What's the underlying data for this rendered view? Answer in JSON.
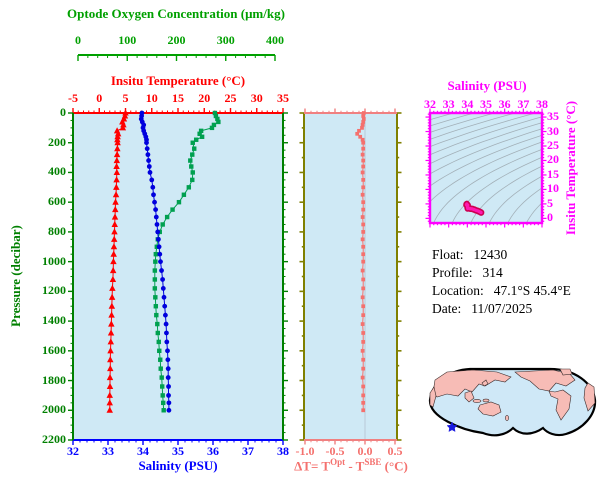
{
  "figure_info": {
    "float_label": "Float:",
    "float_value": "12430",
    "profile_label": "Profile:",
    "profile_value": "314",
    "location_label": "Location:",
    "location_value": "47.1°S  45.4°E",
    "date_label": "Date:",
    "date_value": "11/07/2025"
  },
  "colors": {
    "panel_background": "#cfe9f5",
    "oxygen_green": "#00a000",
    "pressure_green": "#008000",
    "temperature_red": "#ff0000",
    "salinity_blue": "#0000ff",
    "deltat_salmon": "#f08080",
    "deltat_frame_olive": "#808000",
    "ts_magenta": "#ff00ff",
    "ts_curve_pink": "#ff18b0",
    "map_land": "#f7bcb6",
    "map_ocean": "#cfe8f7",
    "map_marker_blue": "#1b1be0"
  },
  "chart_data": [
    {
      "id": "main-profile",
      "type": "line",
      "orientation": "vertical-profile",
      "y_axis": {
        "label": "Pressure (decibar)",
        "range": [
          0,
          2200
        ],
        "ticks": [
          0,
          200,
          400,
          600,
          800,
          1000,
          1200,
          1400,
          1600,
          1800,
          2000,
          2200
        ],
        "color": "#008000"
      },
      "x_axes": [
        {
          "id": "oxygen",
          "label": "Optode Oxygen Concentration (μm/kg)",
          "range": [
            0,
            400
          ],
          "ticks": [
            0,
            100,
            200,
            300,
            400
          ],
          "color": "#00a000"
        },
        {
          "id": "temperature",
          "label": "Insitu Temperature (°C)",
          "range": [
            -5,
            35
          ],
          "ticks": [
            -5,
            0,
            5,
            10,
            15,
            20,
            25,
            30,
            35
          ],
          "color": "#ff0000"
        },
        {
          "id": "salinity",
          "label": "Salinity (PSU)",
          "range": [
            32,
            38
          ],
          "ticks": [
            32,
            33,
            34,
            35,
            36,
            37,
            38
          ],
          "color": "#0000ff"
        }
      ],
      "pressure": [
        0,
        20,
        40,
        60,
        80,
        100,
        120,
        140,
        160,
        180,
        200,
        240,
        280,
        320,
        360,
        400,
        450,
        500,
        550,
        600,
        650,
        700,
        750,
        800,
        850,
        900,
        950,
        1000,
        1060,
        1120,
        1180,
        1240,
        1300,
        1360,
        1420,
        1480,
        1540,
        1600,
        1660,
        1720,
        1780,
        1840,
        1900,
        1950,
        2000
      ],
      "series": [
        {
          "name": "Insitu Temperature",
          "axis": "temperature",
          "color": "#ff0000",
          "marker": "triangle",
          "values": [
            5.0,
            4.9,
            4.7,
            4.4,
            4.6,
            4.5,
            3.4,
            3.6,
            3.5,
            3.45,
            3.5,
            3.45,
            3.4,
            3.35,
            3.3,
            3.35,
            3.3,
            3.25,
            3.2,
            3.1,
            3.05,
            3.0,
            2.95,
            2.9,
            2.85,
            2.8,
            2.75,
            2.7,
            2.65,
            2.6,
            2.5,
            2.45,
            2.4,
            2.35,
            2.3,
            2.25,
            2.2,
            2.15,
            2.1,
            2.1,
            2.05,
            2.05,
            2.0,
            2.0,
            2.0
          ]
        },
        {
          "name": "Salinity",
          "axis": "salinity",
          "color": "#0000dd",
          "marker": "circle",
          "values": [
            33.97,
            33.96,
            33.95,
            33.98,
            34.02,
            34.0,
            34.02,
            34.05,
            34.08,
            34.1,
            34.1,
            34.12,
            34.14,
            34.16,
            34.18,
            34.2,
            34.25,
            34.28,
            34.3,
            34.33,
            34.36,
            34.38,
            34.4,
            34.42,
            34.44,
            34.46,
            34.48,
            34.5,
            34.53,
            34.56,
            34.58,
            34.6,
            34.62,
            34.64,
            34.66,
            34.67,
            34.68,
            34.7,
            34.71,
            34.72,
            34.72,
            34.73,
            34.73,
            34.74,
            34.74
          ]
        },
        {
          "name": "Optode Oxygen Concentration",
          "axis": "oxygen",
          "color": "#00a050",
          "marker": "square",
          "values": [
            278,
            280,
            283,
            285,
            276,
            272,
            250,
            247,
            252,
            240,
            233,
            236,
            232,
            228,
            230,
            233,
            232,
            225,
            215,
            205,
            192,
            181,
            172,
            166,
            162,
            160,
            158,
            157,
            156,
            156,
            156,
            157,
            158,
            159,
            161,
            162,
            164,
            165,
            167,
            168,
            170,
            171,
            172,
            173,
            174
          ]
        }
      ]
    },
    {
      "id": "delta-t-profile",
      "type": "line",
      "orientation": "vertical-profile",
      "x_axis": {
        "label": "ΔT= T^Opt - T^SBE (°C)",
        "label_parts": {
          "p1": "ΔT= T",
          "s1": "Opt",
          "p2": " - T",
          "s2": "SBE",
          "p3": " (°C)"
        },
        "range": [
          -1.02,
          0.53
        ],
        "ticks": [
          "-1.0",
          "-0.5",
          "0.0",
          "0.5"
        ],
        "color": "#f08080",
        "frame_color": "#808000"
      },
      "y_axis": {
        "label": "",
        "range": [
          0,
          2200
        ],
        "color": "#808000"
      },
      "gridline_x": 0.0,
      "pressure": [
        0,
        20,
        40,
        60,
        80,
        100,
        120,
        140,
        160,
        180,
        200,
        240,
        280,
        320,
        360,
        400,
        450,
        500,
        550,
        600,
        650,
        700,
        750,
        800,
        850,
        900,
        950,
        1000,
        1060,
        1120,
        1180,
        1240,
        1300,
        1360,
        1420,
        1480,
        1540,
        1600,
        1660,
        1720,
        1780,
        1840,
        1900,
        1950,
        2000
      ],
      "series": [
        {
          "name": "ΔT",
          "color": "#f4716e",
          "marker": "square",
          "values": [
            -0.02,
            -0.03,
            -0.02,
            -0.03,
            -0.04,
            -0.05,
            -0.1,
            -0.13,
            -0.08,
            -0.04,
            -0.03,
            -0.03,
            -0.04,
            -0.03,
            -0.03,
            -0.04,
            -0.03,
            -0.03,
            -0.04,
            -0.03,
            -0.03,
            -0.04,
            -0.03,
            -0.03,
            -0.04,
            -0.03,
            -0.03,
            -0.03,
            -0.04,
            -0.03,
            -0.03,
            -0.04,
            -0.03,
            -0.03,
            -0.04,
            -0.03,
            -0.03,
            -0.04,
            -0.03,
            -0.03,
            -0.04,
            -0.03,
            -0.03,
            -0.03,
            -0.03
          ]
        }
      ]
    },
    {
      "id": "ts-diagram",
      "type": "scatter",
      "x_axis": {
        "label": "Salinity (PSU)",
        "range": [
          32,
          38
        ],
        "ticks": [
          32,
          33,
          34,
          35,
          36,
          37,
          38
        ],
        "color": "#ff00ff"
      },
      "y_axis": {
        "label": "Insitu Temperature (°C)",
        "range": [
          -1.6,
          36.4
        ],
        "ticks": [
          0,
          5,
          10,
          15,
          20,
          25,
          30,
          35
        ],
        "color": "#ff00ff"
      },
      "isopycnals": {
        "color": "#a3b0b8",
        "sigma_min": 18,
        "sigma_max": 30.4,
        "step": 0.8
      },
      "point_color": "#ff18b0",
      "points_source": "pairs of (salinity, temperature) from main-profile series"
    }
  ],
  "map": {
    "description": "world map, Pacific-centered",
    "marker_shape": "star",
    "marker_meaning": "float location"
  }
}
